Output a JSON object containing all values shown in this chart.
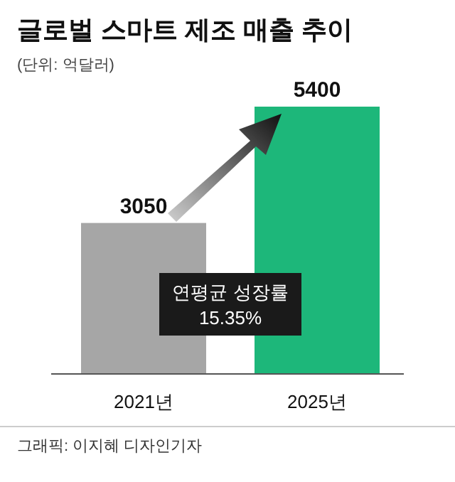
{
  "chart_data": {
    "type": "bar",
    "title": "글로벌 스마트 제조 매출 추이",
    "subtitle": "(단위: 억달러)",
    "categories": [
      "2021년",
      "2025년"
    ],
    "values": [
      3050,
      5400
    ],
    "colors": [
      "#a6a6a6",
      "#1db77a"
    ],
    "data_labels": true,
    "annotations": [
      "연평균 성장률\n15.35%",
      "그래픽: 이지혜 디자인기자"
    ]
  }
}
